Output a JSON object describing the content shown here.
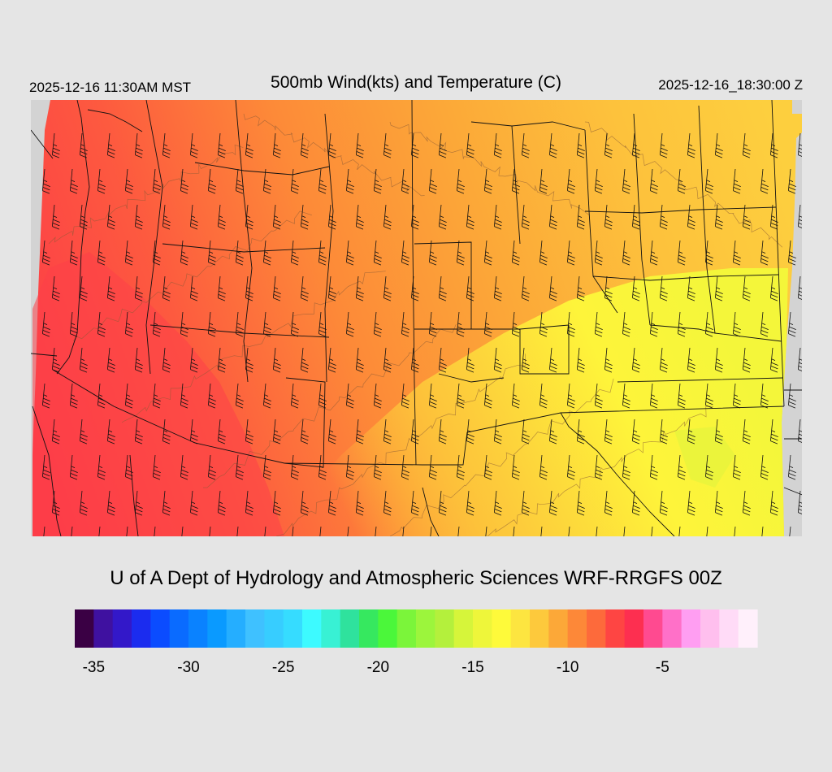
{
  "header": {
    "local_time": "2025-12-16 11:30AM MST",
    "title": "500mb Wind(kts) and Temperature (C)",
    "valid_time": "2025-12-16_18:30:00 Z"
  },
  "map": {
    "variable": "500mb temperature (C) with wind barbs (kts)",
    "wind_direction": "westerly to west-southwesterly",
    "barb_speed_kts": 45,
    "temperature_range_c": [
      -16,
      -9
    ],
    "colors": {
      "background": "#e5e5e5",
      "nodata": "#d3d3d3",
      "border_lines": "#111111",
      "contour_lines": "#8a5a36"
    }
  },
  "credit": "U of A Dept of Hydrology and Atmospheric Sciences WRF-RRGFS 00Z",
  "colorbar": {
    "colors": [
      "#3a0044",
      "#3f11a0",
      "#3318c9",
      "#1b2cef",
      "#0b4cff",
      "#0a6bff",
      "#0a82ff",
      "#0a9aff",
      "#25aeff",
      "#3fc1ff",
      "#37cdff",
      "#36dcff",
      "#3dfaff",
      "#38f1d4",
      "#2fe29d",
      "#36e85f",
      "#4bf73a",
      "#7bf53a",
      "#9cf53c",
      "#b4f03c",
      "#d6f53a",
      "#eef63a",
      "#fefa3a",
      "#fde540",
      "#fdc93c",
      "#fca838",
      "#fd8838",
      "#fd6a3b",
      "#fe4543",
      "#fd2f50",
      "#ff4a90",
      "#ff70c8",
      "#ff9ef2",
      "#ffbfee",
      "#ffdbf7",
      "#fff0fb"
    ],
    "ticks": [
      {
        "label": "-35",
        "index": 1
      },
      {
        "label": "-30",
        "index": 6
      },
      {
        "label": "-25",
        "index": 11
      },
      {
        "label": "-20",
        "index": 16
      },
      {
        "label": "-15",
        "index": 21
      },
      {
        "label": "-10",
        "index": 26
      },
      {
        "label": "-5",
        "index": 31
      }
    ]
  }
}
